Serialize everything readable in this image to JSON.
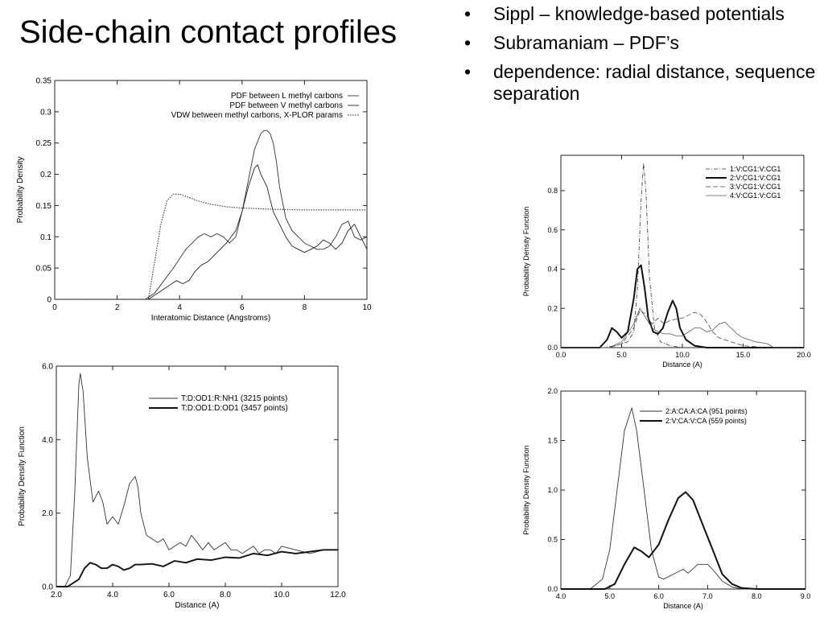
{
  "slide": {
    "title": "Side-chain contact profiles",
    "bullets": [
      "Sippl – knowledge-based potentials",
      "Subramaniam – PDF’s",
      "dependence: radial distance, sequence separation"
    ]
  },
  "chart_data": [
    {
      "id": "chart1",
      "type": "line",
      "title": "",
      "xlabel": "Interatomic Distance (Angstroms)",
      "ylabel": "Probability Density",
      "xlim": [
        0,
        10
      ],
      "ylim": [
        0,
        0.35
      ],
      "xticks": [
        0,
        2,
        4,
        6,
        8,
        10
      ],
      "xtick_labels": [
        "0",
        "2",
        "4",
        "6",
        "8",
        "10"
      ],
      "yticks": [
        0,
        0.05,
        0.1,
        0.15,
        0.2,
        0.25,
        0.3,
        0.35
      ],
      "ytick_labels": [
        "0",
        "0.05",
        "0.1",
        "0.15",
        "0.2",
        "0.25",
        "0.3",
        "0.35"
      ],
      "legend_position": "top-right",
      "grid": false,
      "series": [
        {
          "name": "PDF between L methyl carbons",
          "color": "#333333",
          "dash": "",
          "width": 0.9,
          "x": [
            0,
            2.9,
            3.2,
            3.5,
            3.8,
            4.0,
            4.2,
            4.4,
            4.6,
            4.8,
            5.0,
            5.2,
            5.4,
            5.6,
            5.8,
            6.0,
            6.2,
            6.4,
            6.6,
            6.7,
            6.8,
            6.9,
            7.0,
            7.1,
            7.2,
            7.4,
            7.6,
            7.8,
            8.0,
            8.2,
            8.4,
            8.6,
            8.8,
            9.0,
            9.2,
            9.4,
            9.6,
            9.8,
            10.0
          ],
          "y": [
            0,
            0,
            0.01,
            0.03,
            0.05,
            0.065,
            0.08,
            0.09,
            0.1,
            0.105,
            0.1,
            0.105,
            0.1,
            0.09,
            0.1,
            0.14,
            0.19,
            0.24,
            0.265,
            0.27,
            0.27,
            0.265,
            0.25,
            0.22,
            0.18,
            0.13,
            0.11,
            0.1,
            0.09,
            0.085,
            0.08,
            0.08,
            0.085,
            0.1,
            0.12,
            0.125,
            0.1,
            0.095,
            0.1
          ]
        },
        {
          "name": "PDF between V methyl carbons",
          "color": "#222222",
          "dash": "",
          "width": 0.9,
          "x": [
            0,
            3.0,
            3.3,
            3.6,
            3.9,
            4.1,
            4.3,
            4.5,
            4.7,
            4.9,
            5.2,
            5.5,
            5.8,
            6.0,
            6.2,
            6.4,
            6.5,
            6.6,
            6.8,
            7.0,
            7.2,
            7.4,
            7.6,
            7.8,
            8.0,
            8.2,
            8.4,
            8.6,
            8.8,
            9.0,
            9.2,
            9.4,
            9.6,
            9.8,
            10.0
          ],
          "y": [
            0,
            0,
            0.01,
            0.02,
            0.03,
            0.025,
            0.03,
            0.045,
            0.055,
            0.06,
            0.075,
            0.09,
            0.11,
            0.14,
            0.18,
            0.21,
            0.215,
            0.2,
            0.18,
            0.14,
            0.12,
            0.1,
            0.085,
            0.08,
            0.075,
            0.08,
            0.085,
            0.095,
            0.09,
            0.08,
            0.09,
            0.11,
            0.12,
            0.1,
            0.08
          ]
        },
        {
          "name": "VDW between methyl carbons, X-PLOR params",
          "color": "#444444",
          "dash": "1.5,1.5",
          "width": 1.2,
          "x": [
            0,
            3.0,
            3.2,
            3.4,
            3.6,
            3.8,
            4.0,
            4.3,
            4.6,
            5.0,
            5.5,
            6.0,
            6.5,
            7.0,
            8.0,
            9.0,
            10.0
          ],
          "y": [
            0,
            0,
            0.06,
            0.12,
            0.158,
            0.168,
            0.168,
            0.163,
            0.157,
            0.152,
            0.148,
            0.146,
            0.145,
            0.144,
            0.143,
            0.143,
            0.143
          ]
        }
      ]
    },
    {
      "id": "chart2",
      "type": "line",
      "title": "",
      "xlabel": "Distance (A)",
      "ylabel": "Probability Density Function",
      "xlim": [
        0,
        20
      ],
      "ylim": [
        0,
        0.98
      ],
      "xticks": [
        0,
        5,
        10,
        15,
        20
      ],
      "xtick_labels": [
        "0.0",
        "5.0",
        "10.0",
        "15.0",
        "20.0"
      ],
      "yticks": [
        0,
        0.2,
        0.4,
        0.6,
        0.8
      ],
      "ytick_labels": [
        "0.0",
        "0.2",
        "0.4",
        "0.6",
        "0.8"
      ],
      "legend_position": "top-right",
      "grid": false,
      "series": [
        {
          "name": "1:V:CG1:V:CG1",
          "color": "#333333",
          "dash": "5,2,1,2",
          "width": 0.8,
          "x": [
            0,
            3.5,
            4.5,
            5.5,
            6.0,
            6.3,
            6.6,
            6.8,
            7.0,
            7.3,
            7.7,
            8.2,
            9.0,
            10.0,
            20.0
          ],
          "y": [
            0,
            0,
            0.01,
            0.03,
            0.08,
            0.3,
            0.75,
            0.94,
            0.8,
            0.35,
            0.1,
            0.03,
            0.01,
            0,
            0
          ]
        },
        {
          "name": "2:V:CG1:V:CG1",
          "color": "#111111",
          "dash": "",
          "width": 2.0,
          "x": [
            0,
            3.2,
            3.8,
            4.2,
            4.6,
            5.0,
            5.5,
            6.0,
            6.3,
            6.6,
            6.9,
            7.2,
            7.6,
            8.0,
            8.4,
            8.8,
            9.2,
            9.5,
            9.8,
            10.3,
            11.0,
            12.0,
            13.0,
            14.0,
            20.0
          ],
          "y": [
            0,
            0,
            0.04,
            0.1,
            0.08,
            0.05,
            0.08,
            0.25,
            0.4,
            0.42,
            0.3,
            0.15,
            0.08,
            0.07,
            0.1,
            0.18,
            0.24,
            0.2,
            0.1,
            0.04,
            0.01,
            0,
            0,
            0,
            0
          ]
        },
        {
          "name": "3:V:CG1:V:CG1",
          "color": "#444444",
          "dash": "6,3",
          "width": 0.8,
          "x": [
            0,
            4.0,
            5.0,
            6.0,
            6.5,
            7.0,
            7.5,
            8.0,
            8.5,
            9.0,
            10.0,
            11.0,
            11.5,
            12.0,
            12.5,
            13.0,
            14.0,
            15.0,
            16.0,
            17.0,
            20.0
          ],
          "y": [
            0,
            0,
            0.02,
            0.1,
            0.19,
            0.17,
            0.12,
            0.15,
            0.12,
            0.14,
            0.15,
            0.18,
            0.17,
            0.13,
            0.08,
            0.05,
            0.03,
            0.01,
            0.005,
            0,
            0
          ]
        },
        {
          "name": "4:V:CG1:V:CG1",
          "color": "#555555",
          "dash": "",
          "width": 0.8,
          "x": [
            0,
            4.0,
            5.0,
            6.0,
            6.5,
            7.0,
            7.5,
            8.0,
            8.5,
            9.0,
            9.5,
            10.0,
            10.5,
            11.0,
            11.5,
            12.0,
            12.5,
            13.0,
            13.5,
            14.0,
            14.5,
            15.0,
            16.0,
            17.0,
            17.5,
            20.0
          ],
          "y": [
            0,
            0,
            0.03,
            0.12,
            0.2,
            0.15,
            0.1,
            0.08,
            0.07,
            0.07,
            0.06,
            0.06,
            0.08,
            0.1,
            0.1,
            0.08,
            0.09,
            0.12,
            0.13,
            0.1,
            0.07,
            0.05,
            0.03,
            0.02,
            0,
            0
          ]
        }
      ]
    },
    {
      "id": "chart3",
      "type": "line",
      "title": "",
      "xlabel": "Distance (A)",
      "ylabel": "Probability Density Function",
      "xlim": [
        2,
        12
      ],
      "ylim": [
        0,
        6
      ],
      "xticks": [
        2,
        4,
        6,
        8,
        10,
        12
      ],
      "xtick_labels": [
        "2.0",
        "4.0",
        "6.0",
        "8.0",
        "10.0",
        "12.0"
      ],
      "yticks": [
        0,
        2,
        4,
        6
      ],
      "ytick_labels": [
        "0.0",
        "2.0",
        "4.0",
        "6.0"
      ],
      "legend_position": "top-right",
      "grid": false,
      "series": [
        {
          "name": "T:D:OD1:R:NH1 (3215 points)",
          "color": "#333333",
          "dash": "",
          "width": 0.9,
          "x": [
            2.0,
            2.3,
            2.5,
            2.65,
            2.8,
            2.85,
            2.95,
            3.1,
            3.3,
            3.5,
            3.65,
            3.8,
            4.0,
            4.2,
            4.4,
            4.6,
            4.8,
            4.9,
            5.0,
            5.2,
            5.4,
            5.6,
            5.8,
            6.0,
            6.2,
            6.4,
            6.6,
            6.8,
            7.0,
            7.2,
            7.4,
            7.6,
            7.8,
            8.0,
            8.2,
            8.4,
            8.6,
            8.8,
            9.0,
            9.2,
            9.4,
            9.6,
            9.8,
            10.0,
            10.5,
            11.0,
            11.5,
            12.0
          ],
          "y": [
            0,
            0,
            0.3,
            2.5,
            5.5,
            5.8,
            5.3,
            3.5,
            2.3,
            2.6,
            2.3,
            1.7,
            1.9,
            1.7,
            2.2,
            2.8,
            3.0,
            2.7,
            2.0,
            1.4,
            1.3,
            1.2,
            1.3,
            1.0,
            1.1,
            1.2,
            1.1,
            1.4,
            1.2,
            1.0,
            1.2,
            1.0,
            1.1,
            1.2,
            1.0,
            1.0,
            0.9,
            1.0,
            1.1,
            0.9,
            1.0,
            1.0,
            0.9,
            1.1,
            1.0,
            0.9,
            1.0,
            1.0
          ]
        },
        {
          "name": "T:D:OD1:D:OD1 (3457 points)",
          "color": "#111111",
          "dash": "",
          "width": 1.9,
          "x": [
            2.0,
            2.4,
            2.8,
            3.0,
            3.2,
            3.4,
            3.6,
            3.8,
            4.0,
            4.2,
            4.4,
            4.6,
            4.8,
            5.0,
            5.4,
            5.8,
            6.2,
            6.6,
            7.0,
            7.5,
            8.0,
            8.5,
            9.0,
            9.5,
            10.0,
            10.5,
            11.0,
            11.5,
            12.0
          ],
          "y": [
            0,
            0,
            0.2,
            0.5,
            0.65,
            0.6,
            0.5,
            0.5,
            0.6,
            0.55,
            0.45,
            0.5,
            0.6,
            0.6,
            0.62,
            0.55,
            0.7,
            0.65,
            0.75,
            0.72,
            0.8,
            0.78,
            0.9,
            0.85,
            0.95,
            0.9,
            0.95,
            1.0,
            1.0
          ]
        }
      ]
    },
    {
      "id": "chart4",
      "type": "line",
      "title": "",
      "xlabel": "Distance (A)",
      "ylabel": "Probability Density Function",
      "xlim": [
        4,
        9
      ],
      "ylim": [
        0,
        2
      ],
      "xticks": [
        4,
        5,
        6,
        7,
        8,
        9
      ],
      "xtick_labels": [
        "4.0",
        "5.0",
        "6.0",
        "7.0",
        "8.0",
        "9.0"
      ],
      "yticks": [
        0,
        0.5,
        1,
        1.5,
        2
      ],
      "ytick_labels": [
        "0.0",
        "0.5",
        "1.0",
        "1.5",
        "2.0"
      ],
      "legend_position": "top-right",
      "grid": false,
      "series": [
        {
          "name": "2:A:CA:A:CA (951 points)",
          "color": "#333333",
          "dash": "",
          "width": 0.9,
          "x": [
            4.0,
            4.6,
            4.85,
            5.0,
            5.15,
            5.3,
            5.45,
            5.55,
            5.7,
            5.85,
            6.0,
            6.1,
            6.3,
            6.5,
            6.6,
            6.8,
            7.0,
            7.1,
            7.3,
            7.5,
            7.7,
            8.0,
            9.0
          ],
          "y": [
            0,
            0,
            0.1,
            0.4,
            1.0,
            1.6,
            1.83,
            1.6,
            1.0,
            0.4,
            0.12,
            0.1,
            0.15,
            0.2,
            0.16,
            0.25,
            0.25,
            0.2,
            0.08,
            0.02,
            0,
            0,
            0
          ]
        },
        {
          "name": "2:V:CA:V:CA (559 points)",
          "color": "#111111",
          "dash": "",
          "width": 2.0,
          "x": [
            4.0,
            4.9,
            5.1,
            5.3,
            5.5,
            5.65,
            5.8,
            6.0,
            6.2,
            6.4,
            6.55,
            6.7,
            6.9,
            7.1,
            7.3,
            7.5,
            7.7,
            8.0,
            9.0
          ],
          "y": [
            0,
            0,
            0.05,
            0.25,
            0.42,
            0.38,
            0.32,
            0.45,
            0.7,
            0.92,
            0.98,
            0.9,
            0.65,
            0.4,
            0.15,
            0.05,
            0.01,
            0,
            0
          ]
        }
      ]
    }
  ]
}
